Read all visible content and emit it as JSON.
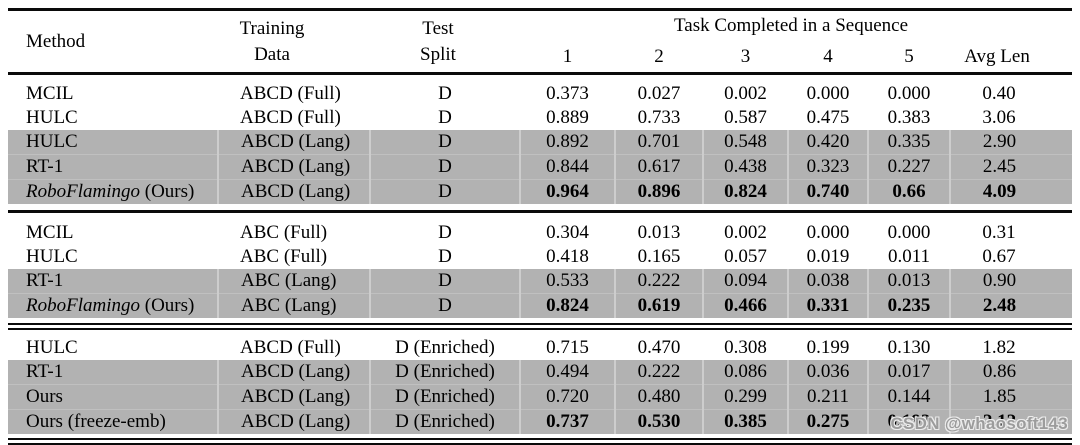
{
  "header": {
    "method": "Method",
    "training_line1": "Training",
    "training_line2": "Data",
    "test_line1": "Test",
    "test_line2": "Split",
    "task_span": "Task Completed in a Sequence",
    "task_cols": [
      "1",
      "2",
      "3",
      "4",
      "5"
    ],
    "avg": "Avg Len"
  },
  "blocks": [
    {
      "rows": [
        {
          "method": {
            "regular": "MCIL"
          },
          "training": "ABCD (Full)",
          "test": "D",
          "values": [
            "0.373",
            "0.027",
            "0.002",
            "0.000",
            "0.000",
            "0.40"
          ],
          "highlight": false,
          "bold": false
        },
        {
          "method": {
            "regular": "HULC"
          },
          "training": "ABCD (Full)",
          "test": "D",
          "values": [
            "0.889",
            "0.733",
            "0.587",
            "0.475",
            "0.383",
            "3.06"
          ],
          "highlight": false,
          "bold": false
        },
        {
          "method": {
            "regular": "HULC"
          },
          "training": "ABCD (Lang)",
          "test": "D",
          "values": [
            "0.892",
            "0.701",
            "0.548",
            "0.420",
            "0.335",
            "2.90"
          ],
          "highlight": true,
          "bold": false
        },
        {
          "method": {
            "regular": "RT-1"
          },
          "training": "ABCD (Lang)",
          "test": "D",
          "values": [
            "0.844",
            "0.617",
            "0.438",
            "0.323",
            "0.227",
            "2.45"
          ],
          "highlight": true,
          "bold": false
        },
        {
          "method": {
            "italic": "RoboFlamingo",
            "regular": " (Ours)"
          },
          "training": "ABCD (Lang)",
          "test": "D",
          "values": [
            "0.964",
            "0.896",
            "0.824",
            "0.740",
            "0.66",
            "4.09"
          ],
          "highlight": true,
          "bold": true
        }
      ]
    },
    {
      "rows": [
        {
          "method": {
            "regular": "MCIL"
          },
          "training": "ABC (Full)",
          "test": "D",
          "values": [
            "0.304",
            "0.013",
            "0.002",
            "0.000",
            "0.000",
            "0.31"
          ],
          "highlight": false,
          "bold": false
        },
        {
          "method": {
            "regular": "HULC"
          },
          "training": "ABC (Full)",
          "test": "D",
          "values": [
            "0.418",
            "0.165",
            "0.057",
            "0.019",
            "0.011",
            "0.67"
          ],
          "highlight": false,
          "bold": false
        },
        {
          "method": {
            "regular": "RT-1"
          },
          "training": "ABC (Lang)",
          "test": "D",
          "values": [
            "0.533",
            "0.222",
            "0.094",
            "0.038",
            "0.013",
            "0.90"
          ],
          "highlight": true,
          "bold": false
        },
        {
          "method": {
            "italic": "RoboFlamingo",
            "regular": " (Ours)"
          },
          "training": "ABC (Lang)",
          "test": "D",
          "values": [
            "0.824",
            "0.619",
            "0.466",
            "0.331",
            "0.235",
            "2.48"
          ],
          "highlight": true,
          "bold": true
        }
      ]
    },
    {
      "rows": [
        {
          "method": {
            "regular": "HULC"
          },
          "training": "ABCD (Full)",
          "test": "D (Enriched)",
          "values": [
            "0.715",
            "0.470",
            "0.308",
            "0.199",
            "0.130",
            "1.82"
          ],
          "highlight": false,
          "bold": false
        },
        {
          "method": {
            "regular": "RT-1"
          },
          "training": "ABCD (Lang)",
          "test": "D (Enriched)",
          "values": [
            "0.494",
            "0.222",
            "0.086",
            "0.036",
            "0.017",
            "0.86"
          ],
          "highlight": true,
          "bold": false
        },
        {
          "method": {
            "regular": "Ours"
          },
          "training": "ABCD (Lang)",
          "test": "D (Enriched)",
          "values": [
            "0.720",
            "0.480",
            "0.299",
            "0.211",
            "0.144",
            "1.85"
          ],
          "highlight": true,
          "bold": false
        },
        {
          "method": {
            "regular": "Ours (freeze-emb)"
          },
          "training": "ABCD (Lang)",
          "test": "D (Enriched)",
          "values": [
            "0.737",
            "0.530",
            "0.385",
            "0.275",
            "0.192",
            "2.12"
          ],
          "highlight": true,
          "bold": true
        }
      ]
    }
  ],
  "watermark": "CSDN @whaosoft143",
  "colors": {
    "highlight_row": "#b2b2b2",
    "cell_separator": "#cdcdcd",
    "rule": "#0a0a0a",
    "watermark_text": "#9c9c9c"
  }
}
